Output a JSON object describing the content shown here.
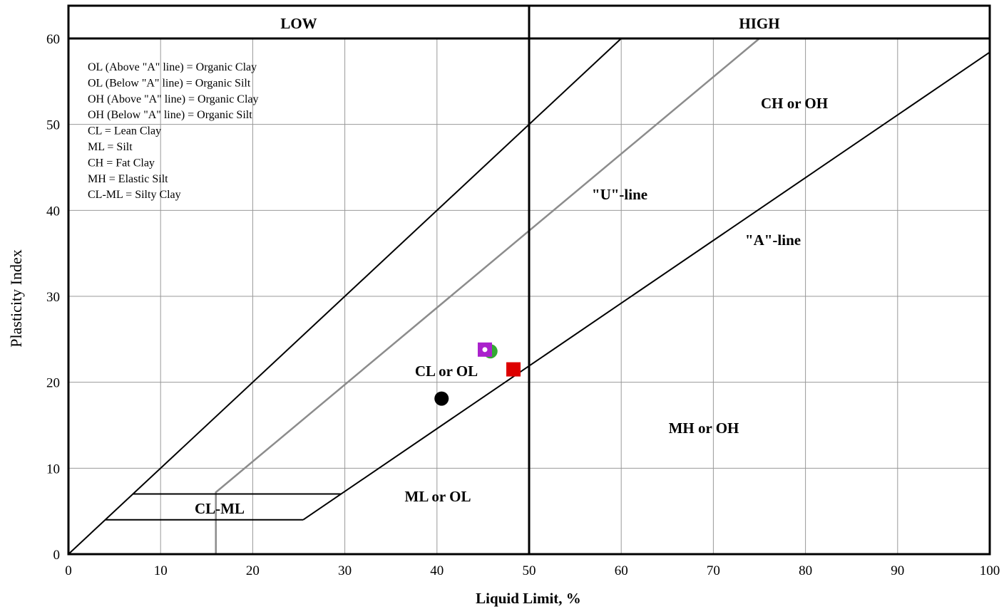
{
  "chart_data": {
    "type": "scatter",
    "xlabel": "Liquid Limit, %",
    "ylabel": "Plasticity Index",
    "xlim": [
      0,
      100
    ],
    "ylim": [
      0,
      60
    ],
    "x_ticks": [
      "0",
      "10",
      "20",
      "30",
      "40",
      "50",
      "60",
      "70",
      "80",
      "90",
      "100"
    ],
    "y_ticks": [
      "0",
      "10",
      "20",
      "30",
      "40",
      "50",
      "60"
    ],
    "grid": true,
    "headers": {
      "low": "LOW",
      "high": "HIGH"
    },
    "legend_lines": [
      "OL (Above \"A\" line) = Organic Clay",
      "OL (Below \"A\" line) = Organic Silt",
      "OH (Above \"A\" line) = Organic Clay",
      "OH (Below \"A\" line) = Organic Silt",
      "CL = Lean Clay",
      "ML = Silt",
      "CH = Fat Clay",
      "MH = Elastic Silt",
      "CL-ML = Silty Clay"
    ],
    "zone_labels": {
      "ch_oh": "CH or OH",
      "u_line": "\"U\"-line",
      "a_line": "\"A\"-line",
      "cl_ol": "CL or OL",
      "mh_oh": "MH or OH",
      "ml_ol": "ML or OL",
      "cl_ml": "CL-ML"
    },
    "reference_lines": {
      "a_line": {
        "equation": "PI = 0.73 (LL - 20)",
        "from_x": 25.5,
        "to_x": 100
      },
      "u_line": {
        "equation": "PI = 0.9 (LL - 8)",
        "from_x": 16,
        "to_x": 75
      },
      "boundary_ll": 50
    },
    "points": [
      {
        "x": 40.5,
        "y": 18.1,
        "marker": "circle",
        "color": "#000000"
      },
      {
        "x": 45.8,
        "y": 23.6,
        "marker": "circle",
        "color": "#33aa33"
      },
      {
        "x": 45.2,
        "y": 23.8,
        "marker": "square-dot",
        "color": "#aa22cc"
      },
      {
        "x": 48.3,
        "y": 21.5,
        "marker": "square",
        "color": "#dd0000"
      }
    ]
  }
}
